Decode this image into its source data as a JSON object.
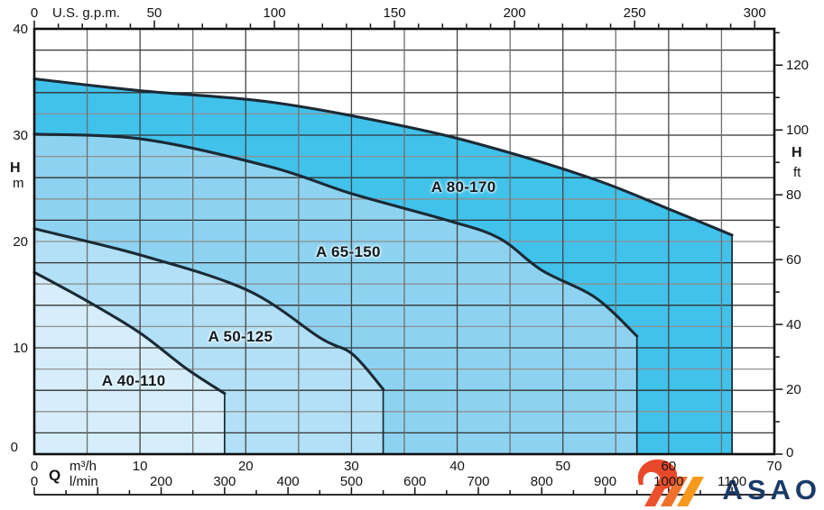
{
  "chart_data": {
    "type": "area",
    "description": "Pump performance envelope chart (head H vs flow Q) with four pump model ranges",
    "plot": {
      "q_max_m3h": 70,
      "h_max_m": 40,
      "gpm_max": 308.2,
      "ft_max": 131.2,
      "lmin_max": 1166.7,
      "grid_h_step_m": 2,
      "grid_q_step_m3h": 5
    },
    "axes": {
      "top": {
        "unit": "U.S. g.p.m.",
        "labels": [
          0,
          50,
          100,
          150,
          200,
          250,
          300
        ],
        "minor_step": 10
      },
      "left": {
        "quantity": "H",
        "unit": "m",
        "labels": [
          40,
          30,
          20,
          10,
          0
        ]
      },
      "right": {
        "quantity": "H",
        "unit": "ft",
        "labels": [
          120,
          100,
          80,
          60,
          40,
          20,
          0
        ],
        "minor_step": 10
      },
      "bottom_primary": {
        "quantity": "Q",
        "unit": "m³/h",
        "labels": [
          0,
          10,
          20,
          30,
          40,
          50,
          60,
          70
        ]
      },
      "bottom_secondary": {
        "unit": "l/min",
        "labels": [
          0,
          200,
          300,
          400,
          500,
          600,
          700,
          800,
          900,
          1000,
          1100
        ],
        "minor_step": 50
      }
    },
    "series": [
      {
        "name": "A 80-170",
        "color": "#40c2eb",
        "q_max": 66,
        "curve_QH": [
          [
            0,
            35.3
          ],
          [
            9.8,
            34.2
          ],
          [
            22.4,
            33.1
          ],
          [
            35.2,
            30.8
          ],
          [
            43.7,
            28.7
          ],
          [
            53.1,
            25.8
          ],
          [
            59.9,
            23.1
          ],
          [
            66,
            20.6
          ]
        ],
        "label_pos_QH": [
          40.6,
          25.1
        ]
      },
      {
        "name": "A 65-150",
        "color": "#8dd3f1",
        "q_max": 57,
        "curve_QH": [
          [
            0,
            30.1
          ],
          [
            10.4,
            29.6
          ],
          [
            22.4,
            27.0
          ],
          [
            30,
            24.5
          ],
          [
            39.4,
            21.9
          ],
          [
            44,
            20.3
          ],
          [
            48,
            17.3
          ],
          [
            53.1,
            14.7
          ],
          [
            57,
            11.1
          ]
        ],
        "label_pos_QH": [
          29.7,
          19.0
        ]
      },
      {
        "name": "A 50-125",
        "color": "#b2e0f6",
        "q_max": 33,
        "curve_QH": [
          [
            0,
            21.2
          ],
          [
            10.1,
            18.7
          ],
          [
            20.2,
            15.4
          ],
          [
            27.1,
            10.9
          ],
          [
            30.1,
            9.4
          ],
          [
            33,
            6.1
          ]
        ],
        "label_pos_QH": [
          19.5,
          11.0
        ]
      },
      {
        "name": "A 40-110",
        "color": "#d6eefb",
        "q_max": 18,
        "curve_QH": [
          [
            0,
            17.1
          ],
          [
            5,
            14.4
          ],
          [
            10,
            11.4
          ],
          [
            14.3,
            8.1
          ],
          [
            18,
            5.7
          ]
        ],
        "label_pos_QH": [
          9.4,
          6.9
        ]
      }
    ],
    "style": {
      "curve_color": "#1b2a35",
      "grid_dark": "#333333",
      "grid_gray": "#8f8f8f",
      "border_color": "#0f0f0f"
    }
  },
  "logo": {
    "mark": "2-swoosh",
    "text": "ASAO",
    "orange_head": "#e8482a",
    "stripe1": "#ea512a",
    "stripe2": "#f0702c",
    "stripe3": "#f8981d",
    "navy": "#1a3a68"
  }
}
